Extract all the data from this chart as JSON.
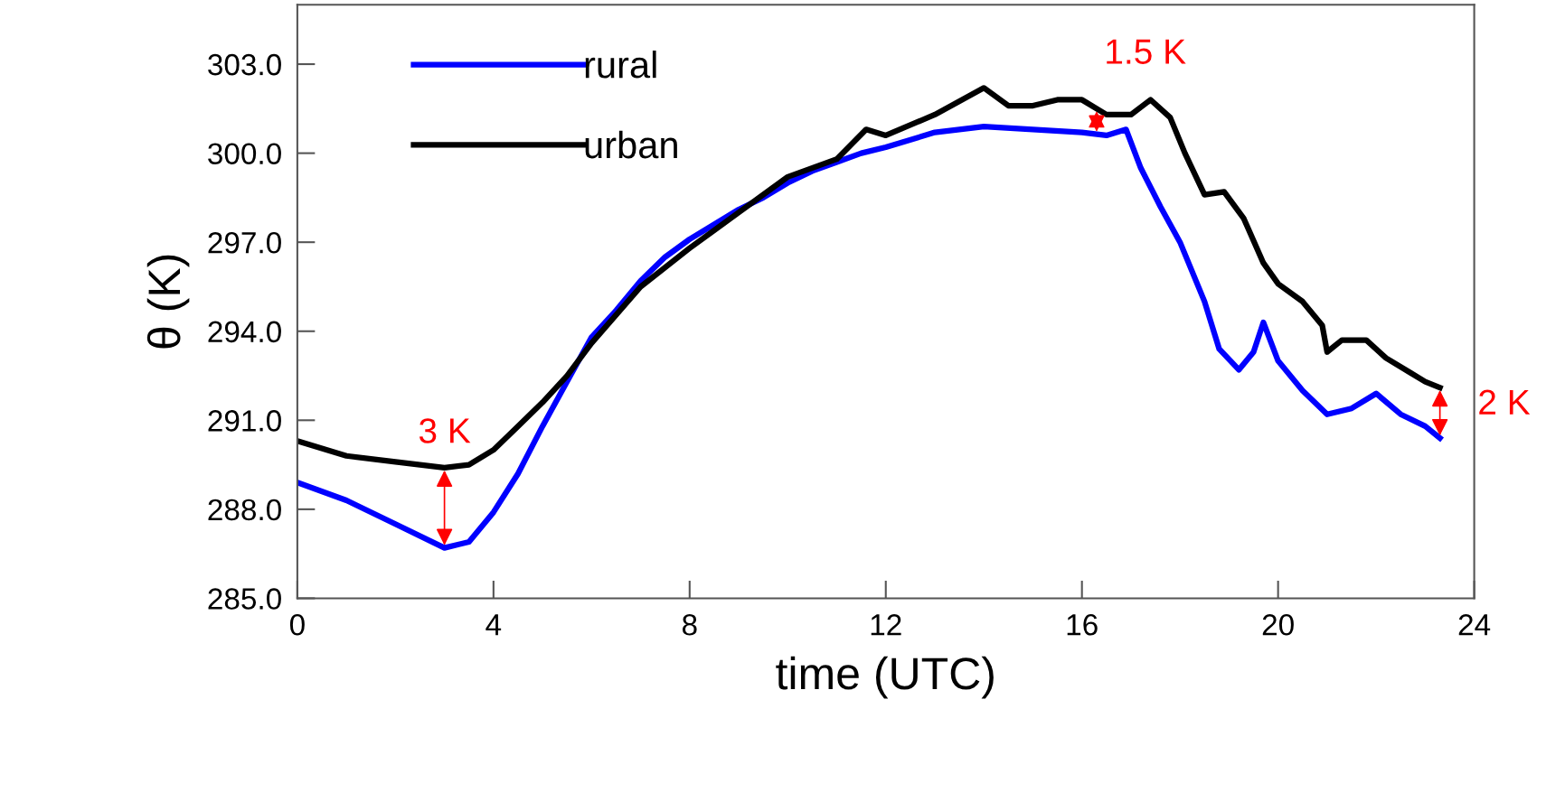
{
  "chart_data": {
    "type": "line",
    "xlabel": "time (UTC)",
    "ylabel": "θ (K)",
    "xlim": [
      0,
      24
    ],
    "ylim": [
      285,
      305
    ],
    "xticks": [
      0,
      4,
      8,
      12,
      16,
      20,
      24
    ],
    "yticks": [
      {
        "value": 285,
        "label": "285.0"
      },
      {
        "value": 288,
        "label": "288.0"
      },
      {
        "value": 291,
        "label": "291.0"
      },
      {
        "value": 294,
        "label": "294.0"
      },
      {
        "value": 297,
        "label": "297.0"
      },
      {
        "value": 300,
        "label": "300.0"
      },
      {
        "value": 303,
        "label": "303.0"
      }
    ],
    "legend": "top left",
    "grid": false,
    "marker": "none",
    "line_style": "solid",
    "series": [
      {
        "name": "rural",
        "color": "#0000ff",
        "x": [
          0,
          1,
          2,
          3,
          3.5,
          4,
          4.5,
          5,
          5.5,
          6,
          6.5,
          7,
          7.5,
          8,
          8.5,
          9,
          9.5,
          10,
          10.5,
          11,
          11.5,
          12,
          13,
          14,
          15,
          16,
          16.5,
          16.9,
          17.2,
          17.6,
          18,
          18.5,
          18.8,
          19.2,
          19.5,
          19.7,
          20,
          20.5,
          21,
          21.5,
          22,
          22.5,
          23,
          23.3
        ],
        "values": [
          288.9,
          288.3,
          287.5,
          286.7,
          286.9,
          287.9,
          289.2,
          290.8,
          292.3,
          293.8,
          294.7,
          295.7,
          296.5,
          297.1,
          297.6,
          298.1,
          298.5,
          299.0,
          299.4,
          299.7,
          300.0,
          300.2,
          300.7,
          300.9,
          300.8,
          300.7,
          300.6,
          300.8,
          299.5,
          298.2,
          297.0,
          295.0,
          293.4,
          292.7,
          293.3,
          294.3,
          293.0,
          292.0,
          291.2,
          291.4,
          291.9,
          291.2,
          290.8,
          290.4
        ]
      },
      {
        "name": "urban",
        "color": "#000000",
        "x": [
          0,
          1,
          2,
          3,
          3.5,
          4,
          4.5,
          5,
          5.5,
          6,
          7,
          8,
          9,
          10,
          11,
          11.6,
          12,
          13,
          14,
          14.5,
          15,
          15.5,
          16,
          16.5,
          17,
          17.4,
          17.8,
          18.1,
          18.5,
          18.9,
          19.3,
          19.7,
          20,
          20.5,
          20.9,
          21,
          21.3,
          21.8,
          22.2,
          22.7,
          23,
          23.3
        ],
        "values": [
          290.3,
          289.8,
          289.6,
          289.4,
          289.5,
          290.0,
          290.8,
          291.6,
          292.5,
          293.6,
          295.5,
          296.8,
          298.0,
          299.2,
          299.8,
          300.8,
          300.6,
          301.3,
          302.2,
          301.6,
          301.6,
          301.8,
          301.8,
          301.3,
          301.3,
          301.8,
          301.2,
          300.0,
          298.6,
          298.7,
          297.8,
          296.3,
          295.6,
          295.0,
          294.2,
          293.3,
          293.7,
          293.7,
          293.1,
          292.6,
          292.3,
          292.1
        ]
      }
    ],
    "annotations": [
      {
        "text": "3 K",
        "x": 3,
        "y": 289.4
      },
      {
        "text": "1.5 K",
        "x": 16.3,
        "y": 301.5
      },
      {
        "text": "2 K",
        "x": 23.3,
        "y": 292.1
      }
    ]
  }
}
